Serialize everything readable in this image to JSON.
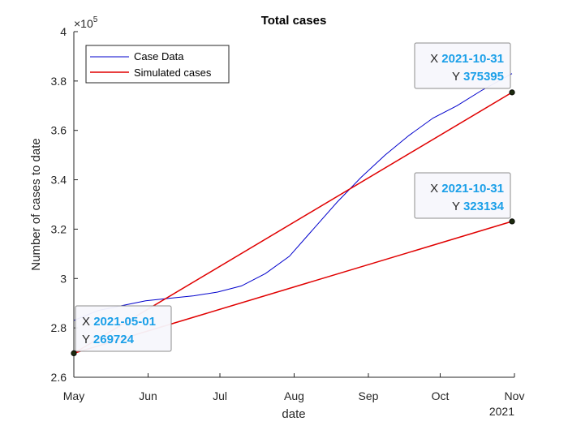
{
  "chart_data": {
    "type": "line",
    "title": "Total cases",
    "xlabel": "date",
    "ylabel": "Number of cases to date",
    "x_axis": {
      "type": "date",
      "range": [
        "2021-05-01",
        "2021-11-01"
      ],
      "ticks": [
        "2021-05-01",
        "2021-06-01",
        "2021-07-01",
        "2021-08-01",
        "2021-09-01",
        "2021-10-01",
        "2021-11-01"
      ],
      "tick_labels": [
        "May",
        "Jun",
        "Jul",
        "Aug",
        "Sep",
        "Oct",
        "Nov"
      ],
      "year_label": "2021"
    },
    "y_axis": {
      "range": [
        260000,
        400000
      ],
      "ticks": [
        260000,
        280000,
        300000,
        320000,
        340000,
        360000,
        380000,
        400000
      ],
      "tick_labels": [
        "2.6",
        "2.8",
        "3",
        "3.2",
        "3.4",
        "3.6",
        "3.8",
        "4"
      ],
      "exponent_label": "×10",
      "exponent_power": "5"
    },
    "grid": false,
    "legend": {
      "placement": "top-left"
    },
    "series": [
      {
        "name": "Case Data",
        "color": "#0000cc",
        "x": [
          "2021-05-01",
          "2021-05-11",
          "2021-05-21",
          "2021-05-31",
          "2021-06-10",
          "2021-06-20",
          "2021-06-30",
          "2021-07-10",
          "2021-07-20",
          "2021-07-30",
          "2021-08-09",
          "2021-08-19",
          "2021-08-29",
          "2021-09-08",
          "2021-09-18",
          "2021-09-28",
          "2021-10-08",
          "2021-10-18",
          "2021-10-31"
        ],
        "y": [
          283000,
          287000,
          289000,
          291000,
          292000,
          293000,
          294500,
          297000,
          302000,
          309000,
          320000,
          331000,
          341000,
          350000,
          358000,
          365000,
          370000,
          376000,
          383000
        ]
      },
      {
        "name": "Simulated cases",
        "color": "#e00000",
        "x": [
          "2021-05-01",
          "2021-10-31"
        ],
        "y": [
          269724,
          375395
        ]
      },
      {
        "name": "",
        "color": "#e00000",
        "x": [
          "2021-05-01",
          "2021-10-31"
        ],
        "y": [
          269724,
          323134
        ]
      }
    ],
    "datatips": [
      {
        "x_label": "2021-05-01",
        "y_label": "269724",
        "x": "2021-05-01",
        "y": 269724
      },
      {
        "x_label": "2021-10-31",
        "y_label": "375395",
        "x": "2021-10-31",
        "y": 375395
      },
      {
        "x_label": "2021-10-31",
        "y_label": "323134",
        "x": "2021-10-31",
        "y": 323134
      }
    ],
    "datatip_key_x": "X",
    "datatip_key_y": "Y",
    "datatip_value_color": "#1a9fe8"
  }
}
